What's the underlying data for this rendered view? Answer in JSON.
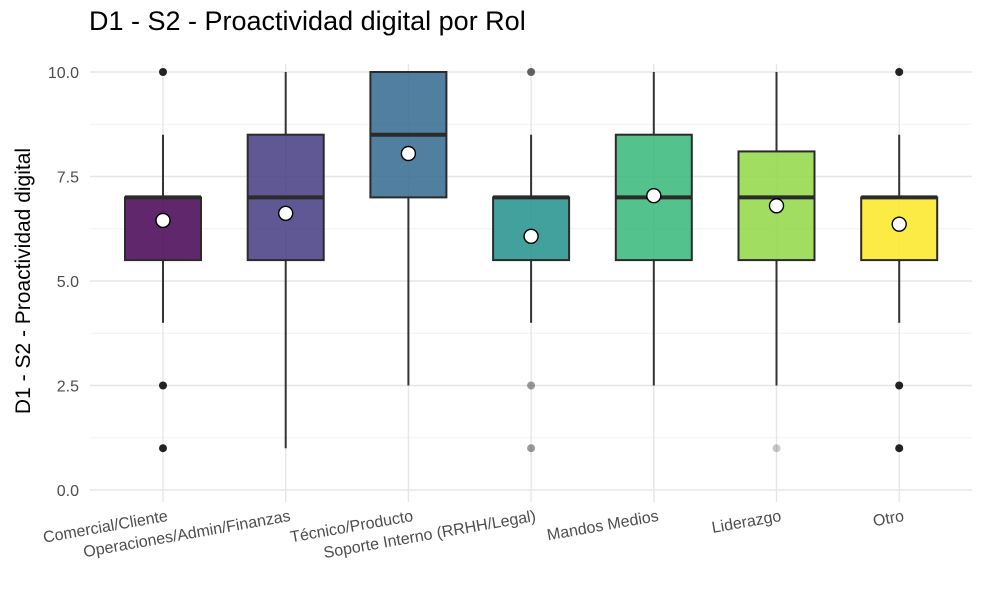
{
  "chart_data": {
    "type": "boxplot",
    "title": "D1 - S2 - Proactividad digital por Rol",
    "xlabel": "",
    "ylabel": "D1 - S2 - Proactividad digital",
    "ylim": [
      0,
      10
    ],
    "yticks": [
      "0.0",
      "2.5",
      "5.0",
      "7.5",
      "10.0"
    ],
    "grid": true,
    "legend": "none",
    "categories": [
      "Comercial/Cliente",
      "Operaciones/Admin/Finanzas",
      "Técnico/Producto",
      "Soporte Interno (RRHH/Legal)",
      "Mandos Medios",
      "Liderazgo",
      "Otro"
    ],
    "boxes": [
      {
        "name": "Comercial/Cliente",
        "color": "#440154",
        "q1": 5.5,
        "median": 7.0,
        "q3": 7.0,
        "whisker_low": 4.0,
        "whisker_high": 8.5,
        "mean": 6.45,
        "outliers": [
          10.0,
          2.5,
          1.0
        ],
        "outlier_opacity": [
          1.0,
          1.0,
          1.0
        ]
      },
      {
        "name": "Operaciones/Admin/Finanzas",
        "color": "#443A83",
        "q1": 5.5,
        "median": 7.0,
        "q3": 8.5,
        "whisker_low": 1.0,
        "whisker_high": 10.0,
        "mean": 6.62,
        "outliers": [],
        "outlier_opacity": []
      },
      {
        "name": "Técnico/Producto",
        "color": "#31688E",
        "q1": 7.0,
        "median": 8.5,
        "q3": 10.0,
        "whisker_low": 2.5,
        "whisker_high": 10.0,
        "mean": 8.05,
        "outliers": [],
        "outlier_opacity": []
      },
      {
        "name": "Soporte Interno (RRHH/Legal)",
        "color": "#21908C",
        "q1": 5.5,
        "median": 7.0,
        "q3": 7.0,
        "whisker_low": 4.0,
        "whisker_high": 8.5,
        "mean": 6.07,
        "outliers": [
          10.0,
          2.5,
          1.0
        ],
        "outlier_opacity": [
          0.7,
          0.45,
          0.45
        ]
      },
      {
        "name": "Mandos Medios",
        "color": "#35B779",
        "q1": 5.5,
        "median": 7.0,
        "q3": 8.5,
        "whisker_low": 2.5,
        "whisker_high": 10.0,
        "mean": 7.04,
        "outliers": [],
        "outlier_opacity": []
      },
      {
        "name": "Liderazgo",
        "color": "#8FD744",
        "q1": 5.5,
        "median": 7.0,
        "q3": 8.1,
        "whisker_low": 2.5,
        "whisker_high": 10.0,
        "mean": 6.8,
        "outliers": [
          1.0
        ],
        "outlier_opacity": [
          0.25
        ]
      },
      {
        "name": "Otro",
        "color": "#FDE725",
        "q1": 5.5,
        "median": 7.0,
        "q3": 7.0,
        "whisker_low": 4.0,
        "whisker_high": 8.5,
        "mean": 6.36,
        "outliers": [
          10.0,
          2.5,
          1.0
        ],
        "outlier_opacity": [
          1.0,
          1.0,
          1.0
        ]
      }
    ]
  }
}
